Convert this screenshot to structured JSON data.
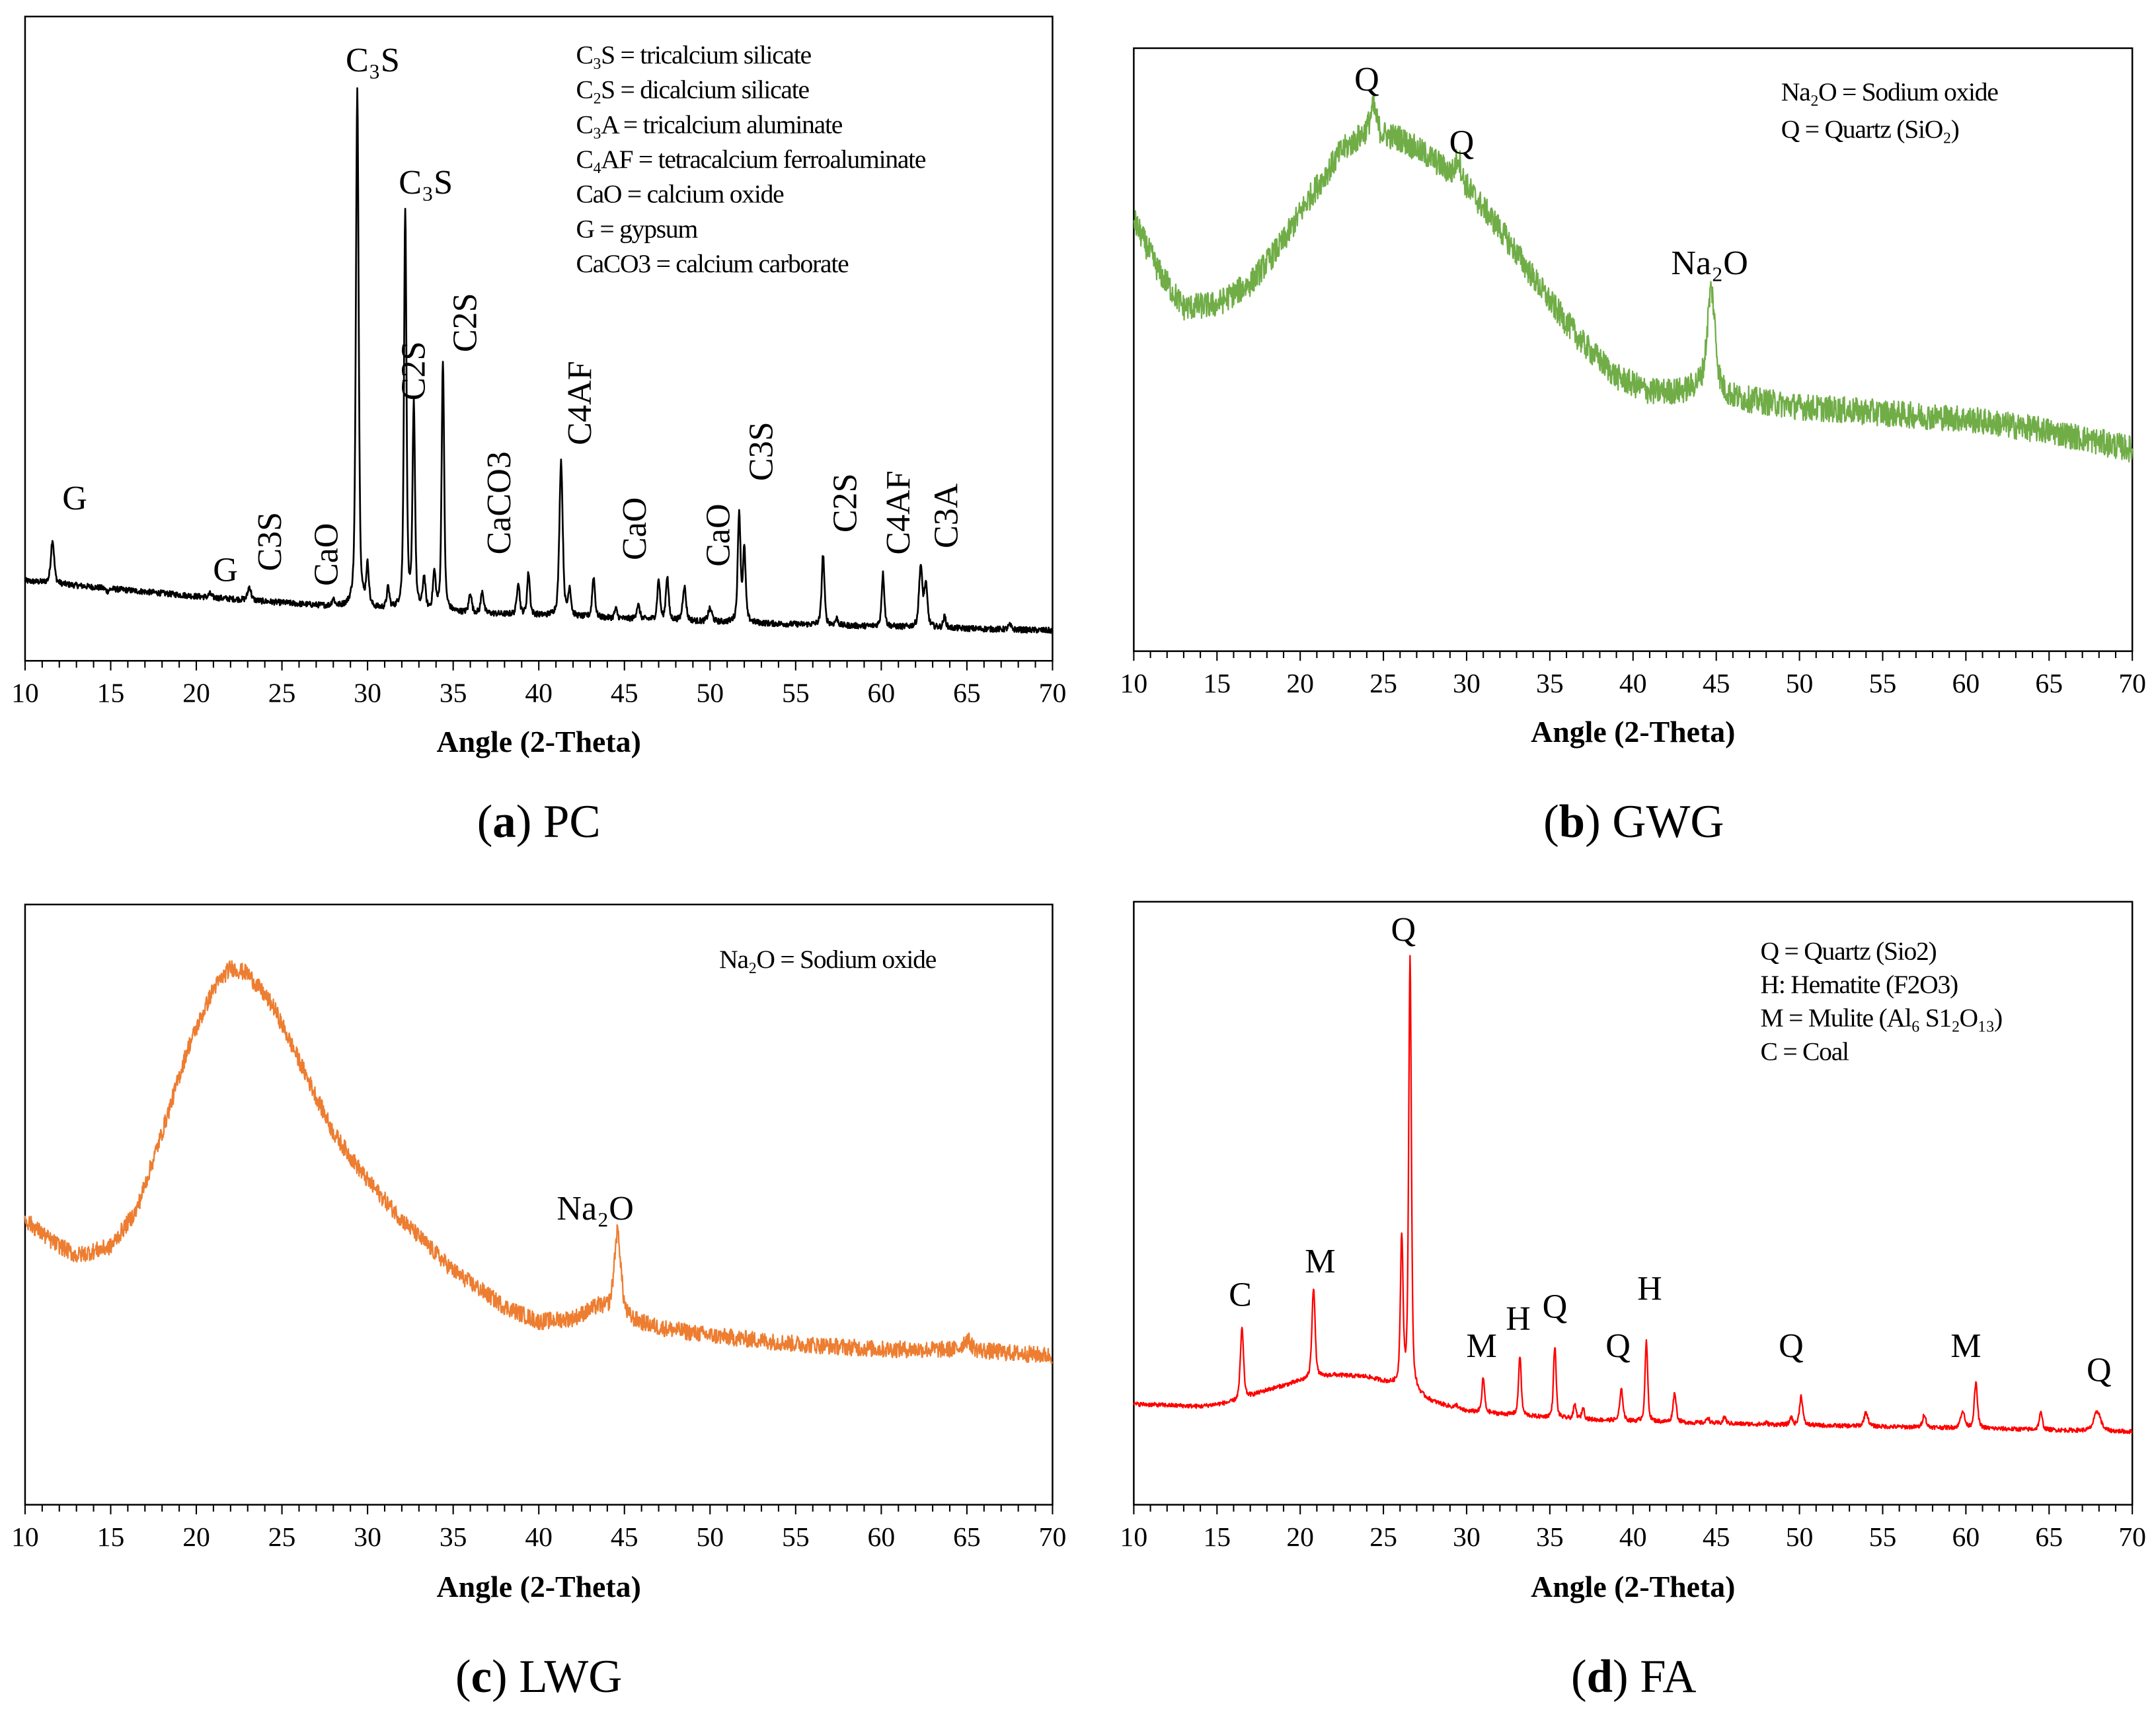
{
  "chart_data": [
    {
      "type": "line",
      "id": "pc",
      "caption": {
        "letter": "a",
        "name": "PC"
      },
      "xlabel": "Angle (2-Theta)",
      "ylabel": "",
      "xlim": [
        10,
        70
      ],
      "ylim": [
        0,
        100
      ],
      "xticks": [
        10,
        15,
        20,
        25,
        30,
        35,
        40,
        45,
        50,
        55,
        60,
        65,
        70
      ],
      "color": "#000000",
      "noise": 0.45,
      "legend": [
        "C₃S = tricalcium silicate",
        "C₂S = dicalcium silicate",
        "C₃A = tricalcium aluminate",
        "C₄AF = tetracalcium ferroaluminate",
        "CaO = calcium oxide",
        "G = gypsum",
        "CaCO3 = calcium carborate"
      ],
      "legend_placement": "top-right",
      "baseline": [
        [
          10,
          12.4
        ],
        [
          20,
          10
        ],
        [
          30,
          8
        ],
        [
          40,
          7
        ],
        [
          50,
          6
        ],
        [
          60,
          5.3
        ],
        [
          70,
          4.7
        ]
      ],
      "peaks": [
        [
          11.6,
          18.8,
          0.12
        ],
        [
          14.8,
          10.8,
          0.12
        ],
        [
          20.8,
          10.4,
          0.1
        ],
        [
          23.1,
          11.5,
          0.12
        ],
        [
          25.2,
          9,
          0.1
        ],
        [
          28.0,
          9.5,
          0.1
        ],
        [
          29.4,
          88.7,
          0.1
        ],
        [
          30.0,
          14.2,
          0.1
        ],
        [
          31.2,
          11,
          0.1
        ],
        [
          32.2,
          69.9,
          0.09
        ],
        [
          32.7,
          39.5,
          0.09
        ],
        [
          33.3,
          12.5,
          0.1
        ],
        [
          33.9,
          13.3,
          0.1
        ],
        [
          34.4,
          46.6,
          0.09
        ],
        [
          36.0,
          10.5,
          0.1
        ],
        [
          36.7,
          10.8,
          0.1
        ],
        [
          38.8,
          12.2,
          0.1
        ],
        [
          39.4,
          13.6,
          0.1
        ],
        [
          41.3,
          31,
          0.12
        ],
        [
          41.8,
          11,
          0.1
        ],
        [
          43.2,
          13,
          0.1
        ],
        [
          44.5,
          8,
          0.1
        ],
        [
          45.8,
          8.6,
          0.12
        ],
        [
          47.0,
          12.5,
          0.1
        ],
        [
          47.5,
          13,
          0.1
        ],
        [
          48.5,
          11.5,
          0.12
        ],
        [
          50.0,
          8,
          0.15
        ],
        [
          51.7,
          22.9,
          0.1
        ],
        [
          52.0,
          17,
          0.1
        ],
        [
          56.6,
          16.5,
          0.1
        ],
        [
          57.4,
          6.5,
          0.1
        ],
        [
          60.1,
          13.5,
          0.1
        ],
        [
          62.3,
          14.5,
          0.12
        ],
        [
          62.6,
          11.5,
          0.12
        ],
        [
          63.7,
          6.8,
          0.1
        ],
        [
          67.5,
          5.5,
          0.12
        ]
      ],
      "annotations": [
        {
          "text": "G",
          "x": 12.9,
          "y": 23.5,
          "vertical": false
        },
        {
          "text": "G",
          "x": 21.7,
          "y": 12.4,
          "vertical": false
        },
        {
          "text": "C3S",
          "x": 24.3,
          "y": 18.5,
          "vertical": true
        },
        {
          "text": "CaO",
          "x": 27.6,
          "y": 16.5,
          "vertical": true
        },
        {
          "text": "C₃S",
          "x": 30.3,
          "y": 91.5,
          "vertical": false
        },
        {
          "text": "C₃S",
          "x": 33.4,
          "y": 72.5,
          "vertical": false
        },
        {
          "text": "C2S",
          "x": 32.7,
          "y": 45,
          "vertical": true
        },
        {
          "text": "C2S",
          "x": 35.7,
          "y": 52.5,
          "vertical": true
        },
        {
          "text": "CaCO3",
          "x": 37.7,
          "y": 24.5,
          "vertical": true
        },
        {
          "text": "C4AF",
          "x": 42.4,
          "y": 40,
          "vertical": true
        },
        {
          "text": "CaO",
          "x": 45.6,
          "y": 20.5,
          "vertical": true
        },
        {
          "text": "CaO",
          "x": 50.5,
          "y": 19.5,
          "vertical": true
        },
        {
          "text": "C3S",
          "x": 53.0,
          "y": 32.5,
          "vertical": true
        },
        {
          "text": "C2S",
          "x": 57.9,
          "y": 24.5,
          "vertical": true
        },
        {
          "text": "C4AF",
          "x": 61.0,
          "y": 23,
          "vertical": true
        },
        {
          "text": "C3A",
          "x": 63.8,
          "y": 22.5,
          "vertical": true
        }
      ]
    },
    {
      "type": "line",
      "id": "gwg",
      "caption": {
        "letter": "b",
        "name": "GWG"
      },
      "xlabel": "Angle (2-Theta)",
      "ylabel": "",
      "xlim": [
        10,
        70
      ],
      "ylim": [
        0,
        100
      ],
      "xticks": [
        10,
        15,
        20,
        25,
        30,
        35,
        40,
        45,
        50,
        55,
        60,
        65,
        70
      ],
      "color": "#70AD47",
      "noise": 2.2,
      "legend": [
        "Na₂O = Sodium oxide",
        "Q = Quartz (SiO₂)"
      ],
      "legend_placement": "top-right",
      "baseline": [
        [
          10,
          71.5
        ],
        [
          11.5,
          63
        ],
        [
          13,
          57
        ],
        [
          15,
          57.5
        ],
        [
          17,
          61
        ],
        [
          19,
          68
        ],
        [
          20.5,
          75
        ],
        [
          22.5,
          83
        ],
        [
          24,
          86
        ],
        [
          26,
          85
        ],
        [
          28,
          81.5
        ],
        [
          30,
          77
        ],
        [
          32,
          70
        ],
        [
          35,
          58
        ],
        [
          37,
          51
        ],
        [
          39,
          45.5
        ],
        [
          41,
          43
        ],
        [
          43,
          43
        ],
        [
          44,
          44
        ],
        [
          46,
          42
        ],
        [
          50,
          40.5
        ],
        [
          55,
          39.5
        ],
        [
          60,
          38.5
        ],
        [
          65,
          36.5
        ],
        [
          70,
          33.5
        ]
      ],
      "peaks": [
        [
          24.4,
          90,
          0.25
        ],
        [
          29.5,
          82,
          0.2
        ],
        [
          44.7,
          60,
          0.3
        ]
      ],
      "annotations": [
        {
          "text": "Q",
          "x": 24.0,
          "y": 93,
          "vertical": false
        },
        {
          "text": "Q",
          "x": 29.7,
          "y": 82.5,
          "vertical": false
        },
        {
          "text": "Na₂O",
          "x": 44.6,
          "y": 62.5,
          "vertical": false
        }
      ]
    },
    {
      "type": "line",
      "id": "lwg",
      "caption": {
        "letter": "c",
        "name": "LWG"
      },
      "xlabel": "Angle (2-Theta)",
      "ylabel": "",
      "xlim": [
        10,
        70
      ],
      "ylim": [
        0,
        100
      ],
      "xticks": [
        10,
        15,
        20,
        25,
        30,
        35,
        40,
        45,
        50,
        55,
        60,
        65,
        70
      ],
      "color": "#ED7D31",
      "noise": 1.4,
      "legend": [
        "Na₂O = Sodium oxide"
      ],
      "legend_placement": "top-right",
      "baseline": [
        [
          10,
          47.5
        ],
        [
          11.5,
          44
        ],
        [
          13,
          41.5
        ],
        [
          15,
          43
        ],
        [
          16.5,
          49
        ],
        [
          18,
          62
        ],
        [
          19.5,
          76
        ],
        [
          21,
          86
        ],
        [
          22,
          89.5
        ],
        [
          23,
          88.5
        ],
        [
          24.5,
          83
        ],
        [
          26,
          74
        ],
        [
          28,
          62
        ],
        [
          30,
          54
        ],
        [
          32,
          47.5
        ],
        [
          35,
          39
        ],
        [
          38,
          33
        ],
        [
          40,
          30.5
        ],
        [
          42,
          31
        ],
        [
          43.5,
          33
        ],
        [
          45,
          31
        ],
        [
          47,
          29.5
        ],
        [
          50,
          28.2
        ],
        [
          55,
          26.8
        ],
        [
          60,
          25.9
        ],
        [
          65,
          25.8
        ],
        [
          70,
          24.8
        ]
      ],
      "peaks": [
        [
          44.6,
          45.4,
          0.25
        ],
        [
          65.0,
          27.5,
          0.3
        ]
      ],
      "annotations": [
        {
          "text": "Na₂O",
          "x": 43.3,
          "y": 47.5,
          "vertical": false
        }
      ]
    },
    {
      "type": "line",
      "id": "fa",
      "caption": {
        "letter": "d",
        "name": "FA"
      },
      "xlabel": "Angle (2-Theta)",
      "ylabel": "",
      "xlim": [
        10,
        70
      ],
      "ylim": [
        0,
        100
      ],
      "xticks": [
        10,
        15,
        20,
        25,
        30,
        35,
        40,
        45,
        50,
        55,
        60,
        65,
        70
      ],
      "color": "#FF0000",
      "noise": 0.35,
      "legend": [
        "Q = Quartz (Sio2)",
        "H: Hematite (F2O3)",
        "M = Mulite (Al₆ S1₂O₁₃)",
        "C = Coal"
      ],
      "legend_placement": "top-right",
      "baseline": [
        [
          10,
          16.7
        ],
        [
          14,
          16.3
        ],
        [
          16,
          17
        ],
        [
          18,
          19
        ],
        [
          20,
          20.5
        ],
        [
          22,
          21.5
        ],
        [
          24,
          21.2
        ],
        [
          25.5,
          20
        ],
        [
          28,
          17
        ],
        [
          30,
          15.5
        ],
        [
          35,
          14.4
        ],
        [
          40,
          13.8
        ],
        [
          50,
          13.2
        ],
        [
          60,
          12.7
        ],
        [
          70,
          12.1
        ]
      ],
      "peaks": [
        [
          16.5,
          29.2,
          0.12
        ],
        [
          20.8,
          36,
          0.12
        ],
        [
          26.1,
          44,
          0.1
        ],
        [
          26.6,
          90.4,
          0.1
        ],
        [
          29.4,
          16.5,
          0.1
        ],
        [
          31.0,
          21,
          0.1
        ],
        [
          33.2,
          24.7,
          0.1
        ],
        [
          35.3,
          26.3,
          0.1
        ],
        [
          36.5,
          16.5,
          0.1
        ],
        [
          37.0,
          16,
          0.1
        ],
        [
          39.3,
          19,
          0.12
        ],
        [
          40.8,
          27,
          0.1
        ],
        [
          42.5,
          18.5,
          0.12
        ],
        [
          44.5,
          14.5,
          0.1
        ],
        [
          45.5,
          14.6,
          0.1
        ],
        [
          48.0,
          13.6,
          0.1
        ],
        [
          49.5,
          14.5,
          0.1
        ],
        [
          50.1,
          18,
          0.12
        ],
        [
          54.0,
          15.3,
          0.15
        ],
        [
          57.5,
          15,
          0.12
        ],
        [
          59.8,
          15.5,
          0.15
        ],
        [
          60.6,
          20.1,
          0.12
        ],
        [
          64.5,
          15.2,
          0.12
        ],
        [
          67.9,
          15.5,
          0.25
        ]
      ],
      "annotations": [
        {
          "text": "C",
          "x": 16.4,
          "y": 33,
          "vertical": false
        },
        {
          "text": "M",
          "x": 21.2,
          "y": 38.5,
          "vertical": false
        },
        {
          "text": "Q",
          "x": 26.2,
          "y": 93.5,
          "vertical": false
        },
        {
          "text": "M",
          "x": 30.9,
          "y": 24.5,
          "vertical": false
        },
        {
          "text": "H",
          "x": 33.1,
          "y": 29,
          "vertical": false
        },
        {
          "text": "Q",
          "x": 35.3,
          "y": 31,
          "vertical": false
        },
        {
          "text": "Q",
          "x": 39.1,
          "y": 24.5,
          "vertical": false
        },
        {
          "text": "H",
          "x": 41.0,
          "y": 34,
          "vertical": false
        },
        {
          "text": "Q",
          "x": 49.5,
          "y": 24.5,
          "vertical": false
        },
        {
          "text": "M",
          "x": 60.0,
          "y": 24.5,
          "vertical": false
        },
        {
          "text": "Q",
          "x": 68.0,
          "y": 20.5,
          "vertical": false
        }
      ]
    }
  ]
}
